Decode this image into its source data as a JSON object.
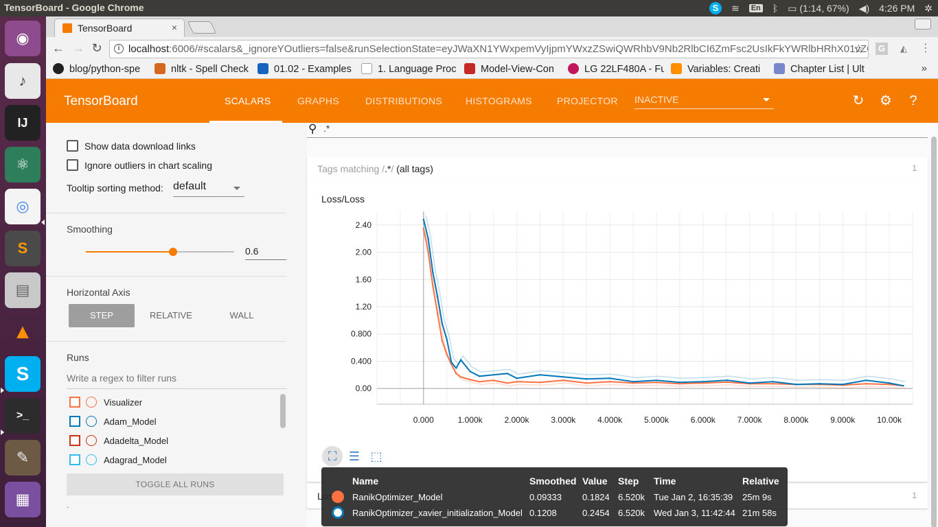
{
  "os": {
    "window_title": "TensorBoard - Google Chrome",
    "tray": {
      "skype": "S",
      "lang": "En",
      "battery": "(1:14, 67%)",
      "clock": "4:26 PM"
    }
  },
  "browser": {
    "tab_title": "TensorBoard",
    "tab_close": "×",
    "url_host": "localhost",
    "url_rest": ":6006/#scalars&_ignoreYOutliers=false&runSelectionState=eyJWaXN1YWxpemVyIjpmYWxzZSwiQWRhbV9Nb2RlbCI6ZmFsc2UsIkFkYWRlbHRhX01vZGVsIj…",
    "bookmarks": [
      {
        "label": "blog/python-spe",
        "color": "#222222"
      },
      {
        "label": "nltk - Spell Check",
        "color": "#d2691e"
      },
      {
        "label": "01.02 - Examples",
        "color": "#1565c0"
      },
      {
        "label": "1. Language Proc",
        "color": "#9e9e9e"
      },
      {
        "label": "Model-View-Con",
        "color": "#c62828"
      },
      {
        "label": "LG 22LF480A - Fu",
        "color": "#c2185b"
      },
      {
        "label": "Variables: Creati",
        "color": "#ff8f00"
      },
      {
        "label": "Chapter List | Ult",
        "color": "#7986cb"
      }
    ],
    "bookmarks_more": "»"
  },
  "tensorboard": {
    "logo": "TensorBoard",
    "tabs": [
      "SCALARS",
      "GRAPHS",
      "DISTRIBUTIONS",
      "HISTOGRAMS",
      "PROJECTOR"
    ],
    "active_tab": "SCALARS",
    "inactive_select": "INACTIVE"
  },
  "sidebar": {
    "show_download_links": "Show data download links",
    "ignore_outliers": "Ignore outliers in chart scaling",
    "tooltip_sort_label": "Tooltip sorting method:",
    "tooltip_sort_value": "default",
    "smoothing_title": "Smoothing",
    "smoothing_value": "0.6",
    "smoothing_fraction": 0.6,
    "horizontal_axis_title": "Horizontal Axis",
    "axis_options": [
      "STEP",
      "RELATIVE",
      "WALL"
    ],
    "axis_selected": "STEP",
    "runs_title": "Runs",
    "runs_filter_placeholder": "Write a regex to filter runs",
    "runs": [
      {
        "name": "Visualizer",
        "color": "#ff7043"
      },
      {
        "name": "Adam_Model",
        "color": "#0077bb"
      },
      {
        "name": "Adadelta_Model",
        "color": "#cc3311"
      },
      {
        "name": "Adagrad_Model",
        "color": "#33bbee"
      }
    ],
    "toggle_all": "TOGGLE ALL RUNS",
    "footer_dot": "."
  },
  "main": {
    "search_value": ".*",
    "tags_prefix": "Tags matching /",
    "tags_regex": ".*",
    "tags_suffix": "/",
    "tags_all": "(all tags)",
    "tags_count": "1",
    "chart_title": "Loss/Loss",
    "second_card_title": "Los",
    "second_card_count": "1"
  },
  "tooltip": {
    "headers": [
      "Name",
      "Smoothed",
      "Value",
      "Step",
      "Time",
      "Relative"
    ],
    "rows": [
      {
        "color": "#ff7043",
        "name": "RanikOptimizer_Model",
        "smoothed": "0.09333",
        "value": "0.1824",
        "step": "6.520k",
        "time": "Tue Jan 2, 16:35:39",
        "relative": "25m 9s"
      },
      {
        "color": "#0077bb",
        "name": "RanikOptimizer_xavier_initialization_Model",
        "smoothed": "0.1208",
        "value": "0.2454",
        "step": "6.520k",
        "time": "Wed Jan 3, 11:42:44",
        "relative": "21m 58s"
      }
    ]
  },
  "chart_data": {
    "type": "line",
    "title": "Loss/Loss",
    "xlabel": "",
    "ylabel": "",
    "x_tick_labels": [
      "0.000",
      "1.000k",
      "2.000k",
      "3.000k",
      "4.000k",
      "5.000k",
      "6.000k",
      "7.000k",
      "8.000k",
      "9.000k",
      "10.00k"
    ],
    "y_tick_labels": [
      "0.00",
      "0.400",
      "0.800",
      "1.20",
      "1.60",
      "2.00",
      "2.40"
    ],
    "xlim": [
      -1000,
      10500
    ],
    "ylim": [
      -0.23,
      2.6
    ],
    "grid": true,
    "series": [
      {
        "name": "RanikOptimizer_Model",
        "color": "#ff7043",
        "x": [
          0,
          100,
          200,
          300,
          400,
          500,
          600,
          700,
          800,
          1000,
          1200,
          1500,
          1800,
          2000,
          2500,
          3000,
          3500,
          4000,
          4500,
          5000,
          5500,
          6000,
          6520,
          7000,
          7500,
          8000,
          8500,
          9000,
          9500,
          10000,
          10300
        ],
        "y": [
          2.35,
          2.0,
          1.5,
          1.1,
          0.7,
          0.5,
          0.35,
          0.22,
          0.17,
          0.13,
          0.1,
          0.12,
          0.08,
          0.1,
          0.09,
          0.12,
          0.08,
          0.1,
          0.08,
          0.09,
          0.07,
          0.08,
          0.093,
          0.07,
          0.07,
          0.06,
          0.06,
          0.05,
          0.07,
          0.06,
          0.04
        ]
      },
      {
        "name": "RanikOptimizer_xavier_initialization_Model",
        "color": "#0077bb",
        "x": [
          0,
          100,
          200,
          300,
          400,
          500,
          600,
          700,
          800,
          1000,
          1200,
          1500,
          1800,
          2000,
          2500,
          3000,
          3500,
          4000,
          4500,
          5000,
          5500,
          6000,
          6520,
          7000,
          7500,
          8000,
          8500,
          9000,
          9500,
          10000,
          10300
        ],
        "y": [
          2.48,
          2.2,
          1.7,
          1.35,
          0.95,
          0.72,
          0.38,
          0.3,
          0.42,
          0.25,
          0.18,
          0.2,
          0.22,
          0.15,
          0.2,
          0.17,
          0.14,
          0.15,
          0.1,
          0.12,
          0.09,
          0.1,
          0.121,
          0.08,
          0.1,
          0.06,
          0.07,
          0.06,
          0.12,
          0.08,
          0.04
        ]
      }
    ]
  }
}
